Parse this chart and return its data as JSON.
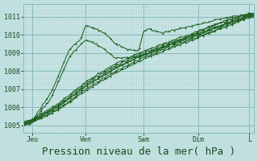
{
  "bg_color": "#c0e0e0",
  "plot_bg_color": "#d0eaea",
  "grid_minor_color": "#a8cccc",
  "grid_major_color": "#88bbbb",
  "line_color": "#1a5c1a",
  "xlabel": "Pression niveau de la mer( hPa )",
  "xlabel_fontsize": 9,
  "xtick_labels": [
    "Jeu",
    "Ven",
    "Sam",
    "Dim",
    "L"
  ],
  "ytick_labels": [
    "1005",
    "1006",
    "1007",
    "1008",
    "1009",
    "1010",
    "1011"
  ],
  "ylim": [
    1004.6,
    1011.7
  ],
  "xlim": [
    0.0,
    1.0
  ],
  "xtick_positions": [
    0.04,
    0.27,
    0.52,
    0.76,
    0.98
  ],
  "ytick_positions": [
    1005,
    1006,
    1007,
    1008,
    1009,
    1010,
    1011
  ],
  "figsize": [
    3.2,
    2.0
  ],
  "dpi": 100
}
